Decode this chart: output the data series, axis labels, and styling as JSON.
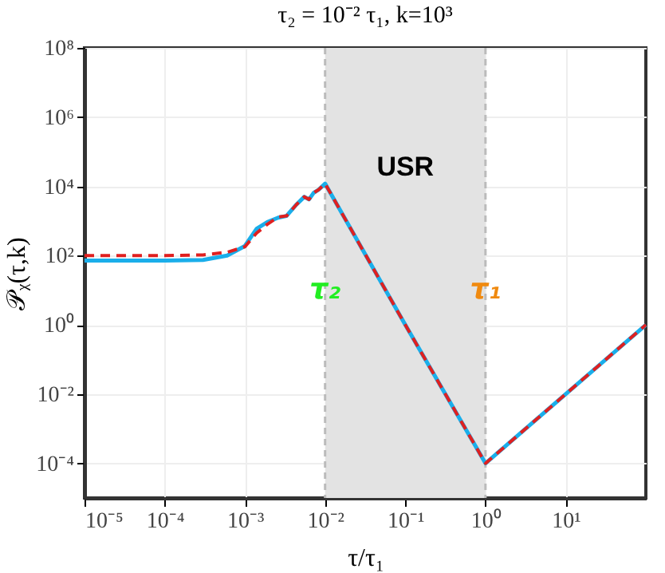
{
  "chart_data": {
    "type": "line",
    "title": "τ₂ = 10⁻² τ₁, k=10³",
    "xlabel": "τ/τ₁",
    "ylabel": "𝒫ᵪ(τ,k)",
    "log": "xy",
    "grid": true,
    "marker": "none",
    "xlim": [
      1e-05,
      100
    ],
    "ylim": [
      1e-05,
      100000000
    ],
    "xticks": [
      {
        "value": 1e-05,
        "label": "10⁻⁵"
      },
      {
        "value": 0.0001,
        "label": "10⁻⁴"
      },
      {
        "value": 0.001,
        "label": "10⁻³"
      },
      {
        "value": 0.01,
        "label": "10⁻²"
      },
      {
        "value": 0.1,
        "label": "10⁻¹"
      },
      {
        "value": 1,
        "label": "10⁰"
      },
      {
        "value": 10,
        "label": "10¹"
      }
    ],
    "yticks": [
      {
        "value": 0.0001,
        "label": "10⁻⁴"
      },
      {
        "value": 0.01,
        "label": "10⁻²"
      },
      {
        "value": 1,
        "label": "10⁰"
      },
      {
        "value": 100,
        "label": "10²"
      },
      {
        "value": 10000,
        "label": "10⁴"
      },
      {
        "value": 1000000,
        "label": "10⁶"
      },
      {
        "value": 100000000,
        "label": "10⁸"
      }
    ],
    "series": [
      {
        "color": "#1aaeea",
        "line_style": "solid",
        "x": [
          1e-05,
          0.0001,
          0.0003,
          0.0006,
          0.001,
          0.0014,
          0.0019,
          0.0026,
          0.0033,
          0.0044,
          0.0055,
          0.0063,
          0.0072,
          0.0083,
          0.01,
          0.1,
          1,
          10,
          100
        ],
        "values": [
          72,
          72,
          75,
          100,
          190,
          600,
          930,
          1250,
          1400,
          3000,
          5000,
          4200,
          6500,
          8000,
          12000,
          1,
          0.0001,
          0.01,
          1
        ]
      },
      {
        "color": "#e02020",
        "line_style": "dashed",
        "x": [
          1e-05,
          0.0001,
          0.0003,
          0.0006,
          0.001,
          0.0014,
          0.0019,
          0.0026,
          0.0033,
          0.0044,
          0.0055,
          0.0063,
          0.0072,
          0.0083,
          0.01,
          0.1,
          1,
          10,
          100
        ],
        "values": [
          100,
          100,
          105,
          125,
          180,
          450,
          800,
          1300,
          1400,
          3000,
          5000,
          4200,
          6500,
          8000,
          12000,
          1,
          0.0001,
          0.01,
          1
        ]
      }
    ],
    "bands": [
      {
        "axis": "x",
        "from": 0.01,
        "to": 1,
        "label": "USR",
        "color": "#e3e3e3"
      }
    ],
    "annotations": [
      {
        "text": "τ₂",
        "x": 0.01,
        "y": 10
      },
      {
        "text": "τ₁",
        "x": 1,
        "y": 10
      }
    ]
  }
}
